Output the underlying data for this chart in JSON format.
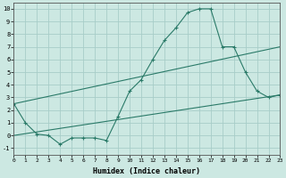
{
  "line1_x": [
    0,
    1,
    2,
    3,
    4,
    5,
    6,
    7,
    8,
    9,
    10,
    11,
    12,
    13,
    14,
    15,
    16,
    17,
    18,
    19,
    20,
    21,
    22,
    23
  ],
  "line1_y": [
    2.5,
    1.0,
    0.1,
    0.0,
    -0.7,
    -0.2,
    -0.2,
    -0.2,
    -0.4,
    1.5,
    3.5,
    4.4,
    6.0,
    7.5,
    8.5,
    9.7,
    10.0,
    10.0,
    7.0,
    7.0,
    5.0,
    3.5,
    3.0,
    3.2
  ],
  "line2_x": [
    0,
    23
  ],
  "line2_y": [
    2.5,
    7.0
  ],
  "line3_x": [
    0,
    23
  ],
  "line3_y": [
    0.0,
    3.2
  ],
  "line_color": "#2a7a68",
  "bg_color": "#cce8e2",
  "grid_color": "#a8cdc8",
  "xlabel": "Humidex (Indice chaleur)",
  "xlim": [
    0,
    23
  ],
  "ylim": [
    -1.5,
    10.5
  ],
  "yticks": [
    -1,
    0,
    1,
    2,
    3,
    4,
    5,
    6,
    7,
    8,
    9,
    10
  ],
  "xticks": [
    0,
    1,
    2,
    3,
    4,
    5,
    6,
    7,
    8,
    9,
    10,
    11,
    12,
    13,
    14,
    15,
    16,
    17,
    18,
    19,
    20,
    21,
    22,
    23
  ]
}
